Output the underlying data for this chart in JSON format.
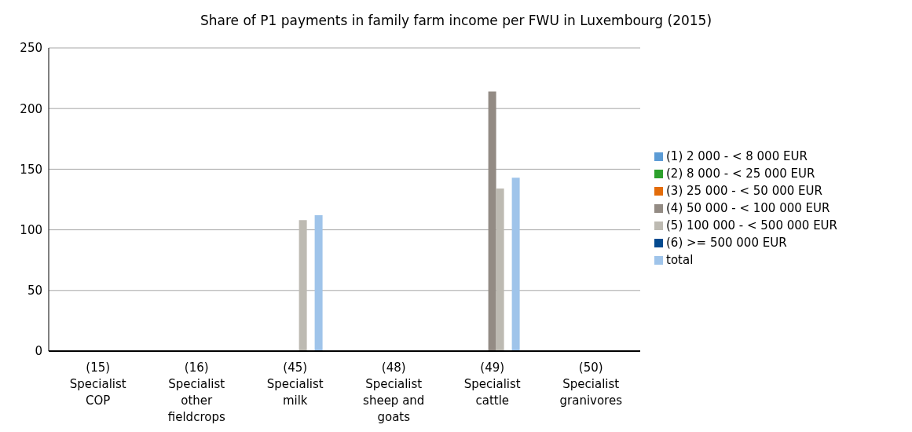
{
  "chart_data": {
    "type": "bar",
    "title": "Share of P1 payments in family farm income per FWU in Luxembourg (2015)",
    "categories": [
      "(15) Specialist COP",
      "(16) Specialist other fieldcrops",
      "(45) Specialist milk",
      "(48) Specialist sheep and goats",
      "(49) Specialist cattle",
      "(50) Specialist granivores"
    ],
    "series": [
      {
        "name": "(1) 2 000 - < 8 000 EUR",
        "color": "#5b9bd5",
        "values": [
          null,
          null,
          null,
          null,
          null,
          null
        ]
      },
      {
        "name": "(2) 8 000 - < 25 000 EUR",
        "color": "#2ca02c",
        "values": [
          null,
          null,
          null,
          null,
          null,
          null
        ]
      },
      {
        "name": "(3) 25 000 - < 50 000 EUR",
        "color": "#e36c0a",
        "values": [
          null,
          null,
          null,
          null,
          null,
          null
        ]
      },
      {
        "name": "(4) 50 000 - < 100 000 EUR",
        "color": "#938b84",
        "values": [
          null,
          null,
          null,
          null,
          214,
          null
        ]
      },
      {
        "name": "(5) 100 000 - < 500 000 EUR",
        "color": "#bdbab2",
        "values": [
          null,
          null,
          108,
          null,
          134,
          null
        ]
      },
      {
        "name": "(6) >= 500 000 EUR",
        "color": "#034a8f",
        "values": [
          null,
          null,
          null,
          null,
          null,
          null
        ]
      },
      {
        "name": "total",
        "color": "#9fc4ea",
        "values": [
          null,
          null,
          112,
          null,
          143,
          null
        ]
      }
    ],
    "ylim": [
      0,
      250
    ],
    "yticks": [
      0,
      50,
      100,
      150,
      200,
      250
    ],
    "grid": "y",
    "legend": "right"
  }
}
